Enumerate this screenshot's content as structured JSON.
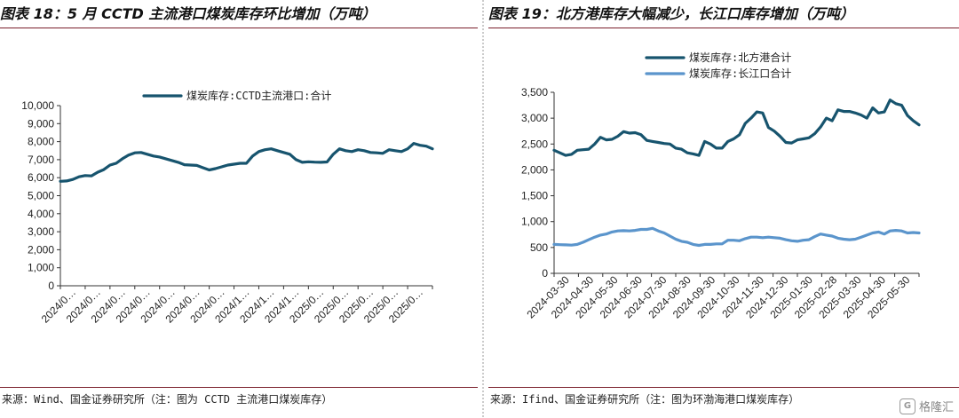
{
  "colors": {
    "rule": "#7a1f2b",
    "series_dark": "#17546e",
    "series_light": "#5b95cc"
  },
  "left": {
    "title": "图表 18：5 月 CCTD 主流港口煤炭库存环比增加（万吨）",
    "source": "来源：Wind、国金证券研究所（注：图为 CCTD 主流港口煤炭库存）"
  },
  "right": {
    "title": "图表 19：北方港库存大幅减少，长江口库存增加（万吨）",
    "source": "来源：Ifind、国金证券研究所（注：图为环渤海港口煤炭库存）"
  },
  "watermark": {
    "icon": "gelonghui-logo-icon",
    "text": "格隆汇"
  },
  "chart_data": [
    {
      "type": "line",
      "title": "5 月 CCTD 主流港口煤炭库存环比增加（万吨）",
      "ylim": [
        0,
        10000
      ],
      "yticks": [
        0,
        1000,
        2000,
        3000,
        4000,
        5000,
        6000,
        7000,
        8000,
        9000,
        10000
      ],
      "ytick_labels": [
        "0",
        "1,000",
        "2,000",
        "3,000",
        "4,000",
        "5,000",
        "6,000",
        "7,000",
        "8,000",
        "9,000",
        "10,000"
      ],
      "x_tick_labels": [
        "2024/0…",
        "2024/0…",
        "2024/0…",
        "2024/0…",
        "2024/0…",
        "2024/0…",
        "2024/0…",
        "2024/1…",
        "2024/1…",
        "2024/1…",
        "2025/0…",
        "2025/0…",
        "2025/0…",
        "2025/0…",
        "2025/0…"
      ],
      "legend": "top-center",
      "series": [
        {
          "name": "煤炭库存:CCTD主流港口:合计",
          "color": "#17546e",
          "values": [
            5800,
            5820,
            5900,
            6050,
            6120,
            6100,
            6300,
            6450,
            6700,
            6800,
            7050,
            7250,
            7380,
            7400,
            7300,
            7200,
            7150,
            7050,
            6950,
            6850,
            6720,
            6700,
            6680,
            6550,
            6430,
            6500,
            6600,
            6700,
            6750,
            6800,
            6800,
            7200,
            7450,
            7550,
            7600,
            7500,
            7400,
            7300,
            7000,
            6850,
            6880,
            6860,
            6850,
            6870,
            7300,
            7600,
            7500,
            7450,
            7550,
            7500,
            7400,
            7380,
            7350,
            7550,
            7500,
            7450,
            7600,
            7900,
            7800,
            7750,
            7600
          ]
        }
      ]
    },
    {
      "type": "line",
      "title": "北方港库存大幅减少，长江口库存增加（万吨）",
      "ylim": [
        0,
        3500
      ],
      "yticks": [
        0,
        500,
        1000,
        1500,
        2000,
        2500,
        3000,
        3500
      ],
      "ytick_labels": [
        "0",
        "500",
        "1,000",
        "1,500",
        "2,000",
        "2,500",
        "3,000",
        "3,500"
      ],
      "x_tick_labels": [
        "2024-03-30",
        "2024-04-30",
        "2024-05-30",
        "2024-06-30",
        "2024-07-30",
        "2024-08-30",
        "2024-09-30",
        "2024-10-30",
        "2024-11-30",
        "2024-12-30",
        "2025-01-30",
        "2025-02-28",
        "2025-03-30",
        "2025-04-30",
        "2025-05-30"
      ],
      "legend": "top-left",
      "series": [
        {
          "name": "煤炭库存:北方港合计",
          "color": "#17546e",
          "values": [
            2380,
            2330,
            2280,
            2300,
            2380,
            2390,
            2400,
            2500,
            2630,
            2580,
            2590,
            2650,
            2740,
            2710,
            2720,
            2680,
            2570,
            2550,
            2530,
            2510,
            2500,
            2420,
            2400,
            2330,
            2310,
            2280,
            2550,
            2500,
            2420,
            2420,
            2550,
            2600,
            2680,
            2900,
            3000,
            3120,
            3100,
            2820,
            2750,
            2650,
            2530,
            2520,
            2580,
            2600,
            2620,
            2700,
            2830,
            3000,
            2950,
            3160,
            3130,
            3130,
            3100,
            3060,
            3000,
            3200,
            3100,
            3120,
            3350,
            3280,
            3250,
            3050,
            2950,
            2870
          ]
        },
        {
          "name": "煤炭库存:长江口合计",
          "color": "#5b95cc",
          "values": [
            560,
            555,
            550,
            545,
            560,
            600,
            650,
            700,
            740,
            760,
            800,
            820,
            825,
            820,
            830,
            850,
            850,
            870,
            820,
            780,
            720,
            660,
            620,
            600,
            560,
            540,
            560,
            560,
            570,
            570,
            640,
            640,
            630,
            670,
            700,
            700,
            690,
            700,
            690,
            680,
            650,
            630,
            620,
            640,
            650,
            710,
            760,
            740,
            720,
            680,
            660,
            650,
            660,
            700,
            740,
            780,
            800,
            760,
            820,
            830,
            820,
            780,
            790,
            780
          ]
        }
      ]
    }
  ]
}
